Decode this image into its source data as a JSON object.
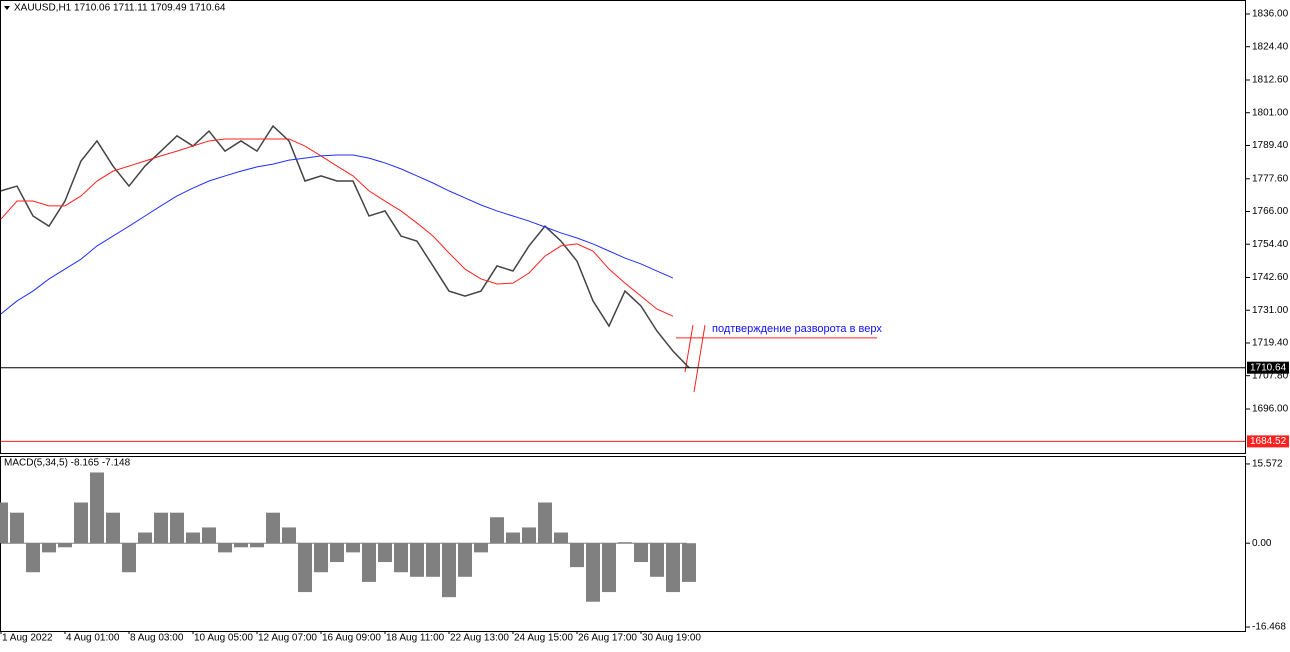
{
  "chart_data": [
    {
      "type": "line",
      "title": "XAUUSD,H1  1710.06 1711.11 1709.49 1710.64",
      "categories": [
        "1 Aug 2022",
        null,
        null,
        null,
        "4 Aug 01:00",
        null,
        null,
        null,
        "8 Aug 03:00",
        null,
        null,
        null,
        "10 Aug 05:00",
        null,
        null,
        null,
        "12 Aug 07:00",
        null,
        null,
        null,
        "16 Aug 09:00",
        null,
        null,
        null,
        "18 Aug 11:00",
        null,
        null,
        null,
        "22 Aug 13:00",
        null,
        null,
        null,
        "24 Aug 15:00",
        null,
        null,
        null,
        "26 Aug 17:00",
        null,
        null,
        null,
        "30 Aug 19:00",
        null,
        null,
        null
      ],
      "series": [
        {
          "color": "#444444",
          "values": [
            1773.3,
            1775,
            1764.4,
            1760.8,
            1769.7,
            1783.9,
            1791,
            1782.1,
            1775,
            1782.1,
            1787.4,
            1792.8,
            1789.2,
            1794.5,
            1787.4,
            1791,
            1787.4,
            1796.3,
            1791,
            1776.8,
            1778.6,
            1776.8,
            1776.8,
            1764.4,
            1766.2,
            1757.3,
            1755.5,
            1746.7,
            1737.8,
            1736,
            1737.8,
            1746.7,
            1744.9,
            1753.8,
            1760.8,
            1755.5,
            1748.4,
            1734.3,
            1725.4,
            1737.8,
            1732.5,
            1723.6,
            1716.5,
            1710.64
          ]
        },
        {
          "color": "#ff2020",
          "values": [
            1763.3,
            1769.7,
            1769.7,
            1768,
            1768,
            1771.5,
            1776.8,
            1780.3,
            1782.1,
            1783.9,
            1785.7,
            1787.4,
            1789.2,
            1791,
            1791.7,
            1791.7,
            1791.7,
            1791.7,
            1791.7,
            1789.2,
            1785.7,
            1782.1,
            1778.6,
            1773.3,
            1769.7,
            1766.2,
            1761.9,
            1757.3,
            1751.3,
            1745.6,
            1742.1,
            1740.3,
            1740.6,
            1744.2,
            1750.2,
            1753.8,
            1754.5,
            1752,
            1745.6,
            1740.6,
            1736,
            1731.4,
            1728.9,
            null
          ]
        },
        {
          "color": "#2030ff",
          "values": [
            1729.7,
            1734.3,
            1737.8,
            1742.1,
            1745.6,
            1749.1,
            1753.8,
            1757.3,
            1760.8,
            1764.4,
            1768,
            1771.5,
            1774.3,
            1776.8,
            1778.6,
            1780.3,
            1781.8,
            1782.8,
            1784.2,
            1784.9,
            1785.7,
            1786,
            1786,
            1784.9,
            1783.2,
            1781.1,
            1778.6,
            1776.1,
            1773.3,
            1770.8,
            1768.3,
            1766.2,
            1764.4,
            1762.6,
            1760.5,
            1758.4,
            1756.6,
            1754.5,
            1752,
            1749.5,
            1747.4,
            1744.9,
            1742.4,
            null
          ]
        }
      ],
      "ylim": [
        1680.05,
        1840.6
      ],
      "yticks": [
        {
          "value": 1836,
          "label": "1836.00"
        },
        {
          "value": 1824.4,
          "label": "1824.40"
        },
        {
          "value": 1812.6,
          "label": "1812.60"
        },
        {
          "value": 1801,
          "label": "1801.00"
        },
        {
          "value": 1789.4,
          "label": "1789.40"
        },
        {
          "value": 1777.6,
          "label": "1777.60"
        },
        {
          "value": 1766,
          "label": "1766.00"
        },
        {
          "value": 1754.4,
          "label": "1754.40"
        },
        {
          "value": 1742.6,
          "label": "1742.60"
        },
        {
          "value": 1731,
          "label": "1731.00"
        },
        {
          "value": 1719.4,
          "label": "1719.40"
        },
        {
          "value": 1707.8,
          "label": "1707.80"
        },
        {
          "value": 1696,
          "label": "1696.00"
        }
      ],
      "hlines": [
        {
          "value": 1710.64,
          "color": "#000000"
        },
        {
          "value": 1684.52,
          "color": "#ff2020"
        }
      ],
      "annotation": {
        "text": "подтверждение разворота в верх",
        "value": 1721.2,
        "color": "#1010ff",
        "line_color": "#ff2020"
      }
    },
    {
      "type": "histogram",
      "title": "MACD(5,34,5) -8.165 -7.148",
      "color": "#808080",
      "values": [
        8,
        6,
        -5.7,
        -1.8,
        -0.8,
        8,
        13.9,
        6,
        -5.7,
        2.1,
        6,
        6,
        2.1,
        3.1,
        -1.8,
        -0.8,
        -0.8,
        6,
        3.1,
        -9.6,
        -5.7,
        -3.7,
        -1.8,
        -7.6,
        -3.7,
        -5.7,
        -6.6,
        -6.6,
        -10.6,
        -6.6,
        -1.8,
        5.1,
        2.1,
        3.1,
        8,
        2.1,
        -4.7,
        -11.5,
        -9.6,
        0.2,
        -3.7,
        -6.6,
        -9.6,
        -7.6
      ],
      "ylim": [
        -17.25,
        16.94
      ],
      "yticks": [
        15.572,
        {
          "value": 0,
          "label": "0.00"
        },
        -16.468
      ]
    }
  ]
}
